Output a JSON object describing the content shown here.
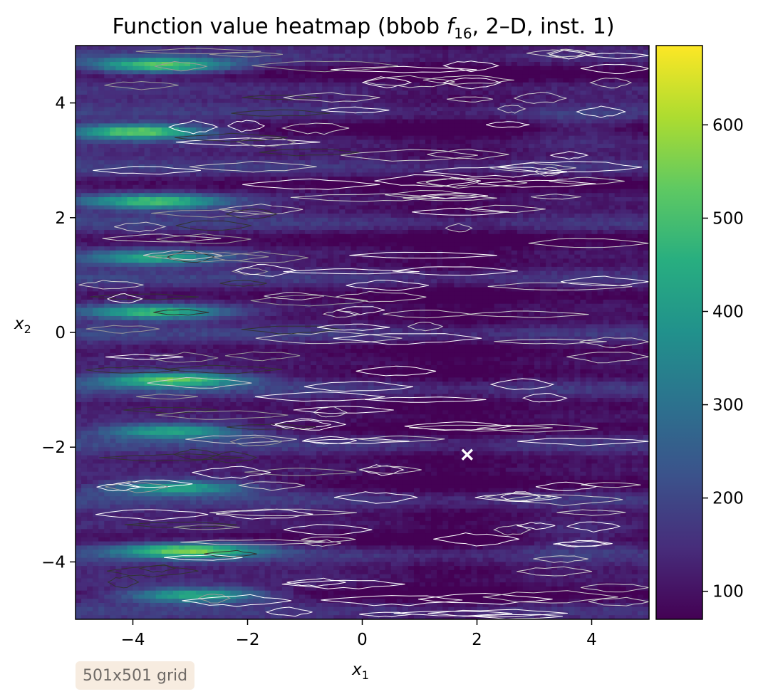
{
  "chart_data": {
    "type": "heatmap",
    "title": {
      "prefix": "Function value heatmap (bbob ",
      "f": "f",
      "sub": "16",
      "suffix": ", 2–D, inst. 1)"
    },
    "xlabel": {
      "base": "x",
      "sub": "1"
    },
    "ylabel": {
      "base": "x",
      "sub": "2"
    },
    "xlim": [
      -5,
      5
    ],
    "ylim": [
      -5,
      5
    ],
    "xticks": [
      {
        "value": -4,
        "label": "−4"
      },
      {
        "value": -2,
        "label": "−2"
      },
      {
        "value": 0,
        "label": "0"
      },
      {
        "value": 2,
        "label": "2"
      },
      {
        "value": 4,
        "label": "4"
      }
    ],
    "yticks": [
      {
        "value": 4,
        "label": "4"
      },
      {
        "value": 2,
        "label": "2"
      },
      {
        "value": 0,
        "label": "0"
      },
      {
        "value": -2,
        "label": "−2"
      },
      {
        "value": -4,
        "label": "−4"
      }
    ],
    "colormap": "viridis",
    "colorbar": {
      "range": [
        70,
        685
      ],
      "ticks": [
        {
          "value": 100,
          "label": "100"
        },
        {
          "value": 200,
          "label": "200"
        },
        {
          "value": 300,
          "label": "300"
        },
        {
          "value": 400,
          "label": "400"
        },
        {
          "value": 500,
          "label": "500"
        },
        {
          "value": 600,
          "label": "600"
        }
      ]
    },
    "optimum_marker": {
      "x": 1.83,
      "y": -2.13,
      "symbol": "x",
      "color": "#ffffff"
    },
    "contour_colors": [
      "#ffffff",
      "#cccccc",
      "#999999",
      "#333333"
    ],
    "high_value_rows": [
      {
        "y": 4.65,
        "x": -3.5,
        "peak": 560
      },
      {
        "y": 3.5,
        "x": -3.9,
        "peak": 610
      },
      {
        "y": 2.28,
        "x": -3.6,
        "peak": 520
      },
      {
        "y": 1.3,
        "x": -3.6,
        "peak": 470
      },
      {
        "y": 0.35,
        "x": -3.6,
        "peak": 520
      },
      {
        "y": -0.82,
        "x": -3.3,
        "peak": 560
      },
      {
        "y": -1.72,
        "x": -3.3,
        "peak": 480
      },
      {
        "y": -2.7,
        "x": -3.2,
        "peak": 480
      },
      {
        "y": -3.8,
        "x": -3.0,
        "peak": 560
      },
      {
        "y": -4.58,
        "x": -2.9,
        "peak": 520
      }
    ]
  },
  "annotation": {
    "text": "501x501 grid"
  }
}
